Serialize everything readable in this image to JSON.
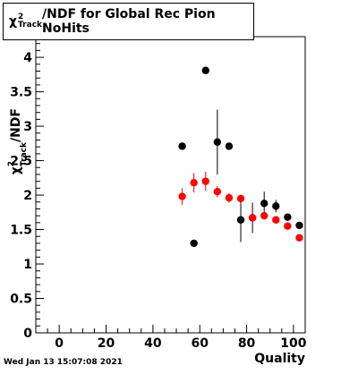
{
  "chart_data": {
    "type": "scatter",
    "title_parts": {
      "pre": "χ",
      "sup": "2",
      "sub": "Track",
      "post": "/NDF for Global Rec Pion NoHits"
    },
    "xlabel": "Quality",
    "ylabel_parts": {
      "pre": "χ",
      "sup": "2",
      "sub": "Track",
      "post": "/NDF"
    },
    "xlim": [
      -10,
      105
    ],
    "ylim": [
      0,
      4.3
    ],
    "xticks": [
      0,
      20,
      40,
      60,
      80,
      100
    ],
    "yticks": [
      0,
      0.5,
      1,
      1.5,
      2,
      2.5,
      3,
      3.5,
      4
    ],
    "grid": false,
    "legend": false,
    "series": [
      {
        "color": "#000000",
        "points": [
          {
            "x": 52.5,
            "y": 2.71,
            "err": 0.0
          },
          {
            "x": 57.5,
            "y": 1.3,
            "err": 0.0
          },
          {
            "x": 62.5,
            "y": 3.81,
            "err": 0.0
          },
          {
            "x": 67.5,
            "y": 2.77,
            "err": 0.47
          },
          {
            "x": 72.5,
            "y": 2.71,
            "err": 0.0
          },
          {
            "x": 77.5,
            "y": 1.64,
            "err": 0.32
          },
          {
            "x": 82.5,
            "y": 1.67,
            "err": 0.22
          },
          {
            "x": 87.5,
            "y": 1.88,
            "err": 0.17
          },
          {
            "x": 92.5,
            "y": 1.84,
            "err": 0.09
          },
          {
            "x": 97.5,
            "y": 1.68,
            "err": 0.05
          },
          {
            "x": 102.5,
            "y": 1.56,
            "err": 0.03
          }
        ]
      },
      {
        "color": "#ff0000",
        "points": [
          {
            "x": 52.5,
            "y": 1.98,
            "err": 0.12
          },
          {
            "x": 57.5,
            "y": 2.18,
            "err": 0.14
          },
          {
            "x": 62.5,
            "y": 2.2,
            "err": 0.14
          },
          {
            "x": 67.5,
            "y": 2.05,
            "err": 0.08
          },
          {
            "x": 72.5,
            "y": 1.96,
            "err": 0.07
          },
          {
            "x": 77.5,
            "y": 1.95,
            "err": 0.05
          },
          {
            "x": 82.5,
            "y": 1.67,
            "err": 0.04
          },
          {
            "x": 87.5,
            "y": 1.7,
            "err": 0.03
          },
          {
            "x": 92.5,
            "y": 1.64,
            "err": 0.02
          },
          {
            "x": 97.5,
            "y": 1.55,
            "err": 0.02
          },
          {
            "x": 102.5,
            "y": 1.38,
            "err": 0.02
          }
        ]
      }
    ]
  },
  "timestamp": "Wed Jan 13 15:07:08 2021"
}
